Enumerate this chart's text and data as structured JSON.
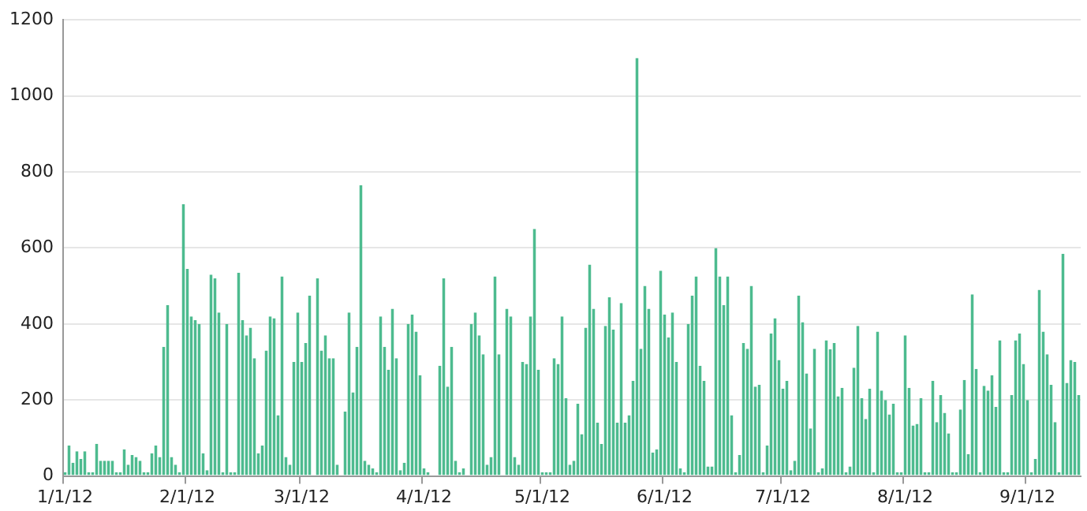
{
  "chart_data": {
    "type": "bar",
    "color": "#4dbb8f",
    "categories": [
      "1/1/12",
      null,
      null,
      null,
      null,
      null,
      null,
      null,
      null,
      null,
      null,
      null,
      null,
      null,
      null,
      null,
      null,
      null,
      null,
      null,
      null,
      null,
      null,
      null,
      null,
      null,
      null,
      null,
      null,
      null,
      null,
      "2/1/12",
      null,
      null,
      null,
      null,
      null,
      null,
      null,
      null,
      null,
      null,
      null,
      null,
      null,
      null,
      null,
      null,
      null,
      null,
      null,
      null,
      null,
      null,
      null,
      null,
      null,
      null,
      null,
      null,
      "3/1/12",
      null,
      null,
      null,
      null,
      null,
      null,
      null,
      null,
      null,
      null,
      null,
      null,
      null,
      null,
      null,
      null,
      null,
      null,
      null,
      null,
      null,
      null,
      null,
      null,
      null,
      null,
      null,
      null,
      null,
      null,
      "4/1/12",
      null,
      null,
      null,
      null,
      null,
      null,
      null,
      null,
      null,
      null,
      null,
      null,
      null,
      null,
      null,
      null,
      null,
      null,
      null,
      null,
      null,
      null,
      null,
      null,
      null,
      null,
      null,
      null,
      null,
      "5/1/12",
      null,
      null,
      null,
      null,
      null,
      null,
      null,
      null,
      null,
      null,
      null,
      null,
      null,
      null,
      null,
      null,
      null,
      null,
      null,
      null,
      null,
      null,
      null,
      null,
      null,
      null,
      null,
      null,
      null,
      null,
      "6/1/12",
      null,
      null,
      null,
      null,
      null,
      null,
      null,
      null,
      null,
      null,
      null,
      null,
      null,
      null,
      null,
      null,
      null,
      null,
      null,
      null,
      null,
      null,
      null,
      null,
      null,
      null,
      null,
      null,
      null,
      "7/1/12",
      null,
      null,
      null,
      null,
      null,
      null,
      null,
      null,
      null,
      null,
      null,
      null,
      null,
      null,
      null,
      null,
      null,
      null,
      null,
      null,
      null,
      null,
      null,
      null,
      null,
      null,
      null,
      null,
      null,
      null,
      "8/1/12",
      null,
      null,
      null,
      null,
      null,
      null,
      null,
      null,
      null,
      null,
      null,
      null,
      null,
      null,
      null,
      null,
      null,
      null,
      null,
      null,
      null,
      null,
      null,
      null,
      null,
      null,
      null,
      null,
      null,
      null,
      "9/1/12",
      null,
      null,
      null,
      null,
      null,
      null,
      null,
      null,
      null,
      null,
      null,
      null,
      null
    ],
    "values": [
      10,
      80,
      35,
      65,
      45,
      65,
      10,
      10,
      85,
      40,
      40,
      40,
      40,
      10,
      10,
      70,
      30,
      55,
      50,
      40,
      10,
      10,
      60,
      80,
      50,
      340,
      450,
      50,
      30,
      10,
      715,
      545,
      420,
      410,
      400,
      60,
      15,
      530,
      520,
      430,
      10,
      400,
      10,
      10,
      535,
      410,
      370,
      390,
      310,
      60,
      80,
      330,
      420,
      415,
      160,
      525,
      50,
      30,
      300,
      430,
      300,
      350,
      475,
      null,
      520,
      330,
      370,
      310,
      310,
      30,
      null,
      170,
      430,
      220,
      340,
      765,
      40,
      30,
      20,
      10,
      420,
      340,
      280,
      440,
      310,
      15,
      35,
      400,
      425,
      380,
      265,
      20,
      10,
      null,
      null,
      290,
      520,
      235,
      340,
      40,
      10,
      20,
      null,
      400,
      430,
      370,
      320,
      30,
      50,
      525,
      320,
      null,
      440,
      420,
      50,
      30,
      300,
      295,
      420,
      650,
      280,
      10,
      10,
      10,
      310,
      295,
      420,
      205,
      30,
      40,
      190,
      110,
      390,
      556,
      440,
      140,
      84,
      395,
      470,
      385,
      140,
      455,
      140,
      160,
      250,
      1100,
      335,
      500,
      440,
      62,
      70,
      540,
      425,
      365,
      430,
      300,
      20,
      10,
      400,
      475,
      525,
      290,
      250,
      25,
      25,
      600,
      525,
      450,
      525,
      160,
      10,
      55,
      350,
      335,
      500,
      235,
      240,
      10,
      80,
      375,
      415,
      305,
      230,
      250,
      15,
      40,
      475,
      405,
      270,
      125,
      335,
      10,
      20,
      357,
      333,
      350,
      210,
      232,
      10,
      25,
      285,
      395,
      205,
      150,
      230,
      10,
      380,
      225,
      200,
      162,
      190,
      10,
      10,
      370,
      232,
      133,
      137,
      205,
      10,
      10,
      250,
      142,
      213,
      166,
      112,
      10,
      10,
      175,
      253,
      58,
      478,
      282,
      10,
      237,
      225,
      265,
      182,
      357,
      10,
      10,
      213,
      357,
      375,
      295,
      200,
      10,
      45,
      490,
      380,
      320,
      240,
      142,
      10,
      585,
      245,
      305,
      300,
      213
    ],
    "ylim": [
      0,
      1200
    ],
    "yticks": [
      0,
      200,
      400,
      600,
      800,
      1000,
      1200
    ],
    "grid": "y"
  }
}
